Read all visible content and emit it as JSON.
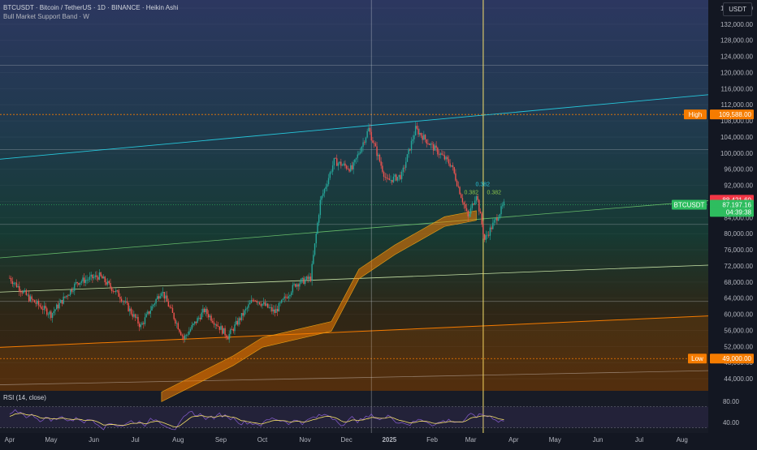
{
  "header": {
    "title": "BTCUSDT · Bitcoin / TetherUS · 1D · BINANCE · Heikin Ashi",
    "indicator": "Bull Market Support Band · W",
    "currency_badge": "USDT"
  },
  "rsi": {
    "label": "RSI (14, close)",
    "ticks": [
      "80.00",
      "40.00"
    ]
  },
  "chart_data": {
    "type": "line",
    "title": "BTCUSDT · Bitcoin / TetherUS · 1D · BINANCE · Heikin Ashi",
    "y_ticks": [
      "136,000.00",
      "132,000.00",
      "128,000.00",
      "124,000.00",
      "120,000.00",
      "116,000.00",
      "112,000.00",
      "108,000.00",
      "104,000.00",
      "100,000.00",
      "96,000.00",
      "92,000.00",
      "88,000.00",
      "84,000.00",
      "80,000.00",
      "76,000.00",
      "72,000.00",
      "68,000.00",
      "64,000.00",
      "60,000.00",
      "56,000.00",
      "52,000.00",
      "48,000.00",
      "44,000.00"
    ],
    "y_tick_values": [
      136000,
      132000,
      128000,
      124000,
      120000,
      116000,
      112000,
      108000,
      104000,
      100000,
      96000,
      92000,
      88000,
      84000,
      80000,
      76000,
      72000,
      68000,
      64000,
      60000,
      56000,
      52000,
      48000,
      44000
    ],
    "ylim": [
      41000,
      138000
    ],
    "x_labels": [
      "Apr",
      "May",
      "Jun",
      "Jul",
      "Aug",
      "Sep",
      "Oct",
      "Nov",
      "Dec",
      "2025",
      "Feb",
      "Mar",
      "Apr",
      "May",
      "Jun",
      "Jul",
      "Aug"
    ],
    "series": [
      {
        "name": "BTCUSDT",
        "x": [
          "2024-04-01",
          "2024-04-15",
          "2024-05-01",
          "2024-05-20",
          "2024-06-05",
          "2024-06-20",
          "2024-07-05",
          "2024-07-20",
          "2024-08-05",
          "2024-08-20",
          "2024-09-06",
          "2024-09-25",
          "2024-10-10",
          "2024-10-25",
          "2024-11-05",
          "2024-11-12",
          "2024-11-22",
          "2024-12-05",
          "2024-12-17",
          "2024-12-30",
          "2025-01-10",
          "2025-01-20",
          "2025-01-31",
          "2025-02-15",
          "2025-02-27",
          "2025-03-05",
          "2025-03-11",
          "2025-03-25"
        ],
        "values": [
          69000,
          64000,
          60000,
          68000,
          69500,
          64500,
          57000,
          66000,
          54000,
          61000,
          54500,
          64000,
          60500,
          67500,
          69000,
          88000,
          98000,
          96000,
          106000,
          93000,
          94500,
          106000,
          102000,
          97000,
          84000,
          90000,
          78500,
          87197
        ]
      }
    ],
    "price_tags": [
      {
        "label": "High",
        "value": "109,588.00",
        "level": 109588,
        "color": "#f57c00"
      },
      {
        "label": "Low",
        "value": "49,000.00",
        "level": 49000,
        "color": "#f57c00"
      },
      {
        "label": "",
        "value": "88,421.60",
        "level": 88421.6,
        "color": "#f23645"
      },
      {
        "label": "BTCUSDT",
        "value": "87,197.16",
        "level": 87197.16,
        "color": "#2ebd5f"
      },
      {
        "label": "",
        "value": "04:39:38",
        "level": 85400,
        "color": "#2ebd5f"
      }
    ],
    "fib_labels": [
      "0.382",
      "0.382",
      "0.382"
    ],
    "grid": true,
    "colors": {
      "background": "#131722",
      "up": "#26a69a",
      "down": "#ef5350",
      "band": "#f57c00",
      "accent": "#f7e16b"
    }
  }
}
